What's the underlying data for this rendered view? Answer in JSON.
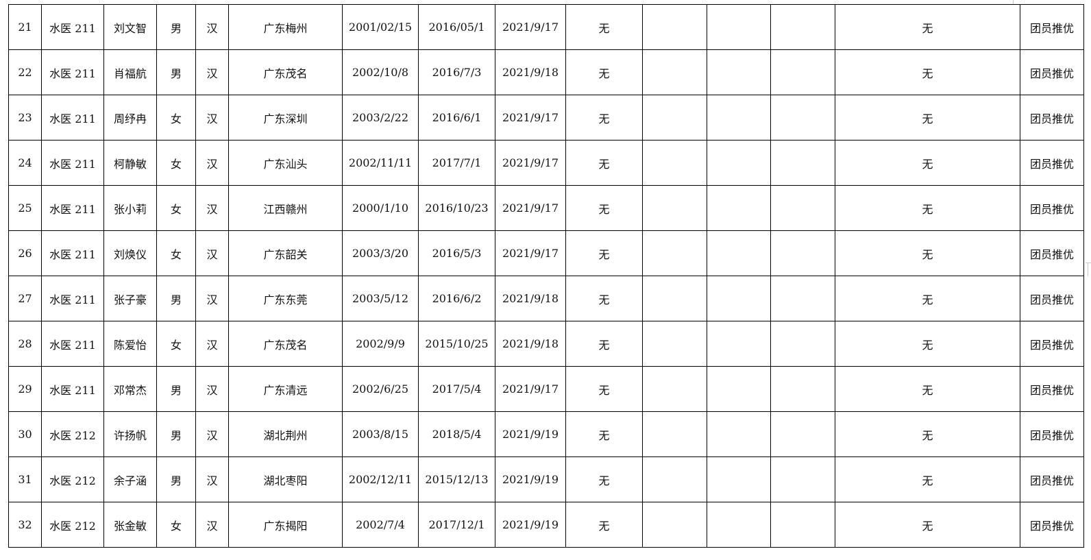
{
  "rows": [
    [
      "21",
      "水医 211",
      "刘文智",
      "男",
      "汉",
      "广东梅州",
      "2001/02/15",
      "2016/05/1",
      "2021/9/17",
      "无",
      "",
      "",
      "",
      "无",
      "团员推优"
    ],
    [
      "22",
      "水医 211",
      "肖福航",
      "男",
      "汉",
      "广东茂名",
      "2002/10/8",
      "2016/7/3",
      "2021/9/18",
      "无",
      "",
      "",
      "",
      "无",
      "团员推优"
    ],
    [
      "23",
      "水医 211",
      "周纾冉",
      "女",
      "汉",
      "广东深圳",
      "2003/2/22",
      "2016/6/1",
      "2021/9/17",
      "无",
      "",
      "",
      "",
      "无",
      "团员推优"
    ],
    [
      "24",
      "水医 211",
      "柯静敏",
      "女",
      "汉",
      "广东汕头",
      "2002/11/11",
      "2017/7/1",
      "2021/9/17",
      "无",
      "",
      "",
      "",
      "无",
      "团员推优"
    ],
    [
      "25",
      "水医 211",
      "张小莉",
      "女",
      "汉",
      "江西赣州",
      "2000/1/10",
      "2016/10/23",
      "2021/9/17",
      "无",
      "",
      "",
      "",
      "无",
      "团员推优"
    ],
    [
      "26",
      "水医 211",
      "刘焕仪",
      "女",
      "汉",
      "广东韶关",
      "2003/3/20",
      "2016/5/3",
      "2021/9/17",
      "无",
      "",
      "",
      "",
      "无",
      "团员推优"
    ],
    [
      "27",
      "水医 211",
      "张子豪",
      "男",
      "汉",
      "广东东莞",
      "2003/5/12",
      "2016/6/2",
      "2021/9/18",
      "无",
      "",
      "",
      "",
      "无",
      "团员推优"
    ],
    [
      "28",
      "水医 211",
      "陈爱怡",
      "女",
      "汉",
      "广东茂名",
      "2002/9/9",
      "2015/10/25",
      "2021/9/18",
      "无",
      "",
      "",
      "",
      "无",
      "团员推优"
    ],
    [
      "29",
      "水医 211",
      "邓常杰",
      "男",
      "汉",
      "广东清远",
      "2002/6/25",
      "2017/5/4",
      "2021/9/17",
      "无",
      "",
      "",
      "",
      "无",
      "团员推优"
    ],
    [
      "30",
      "水医 212",
      "许扬帆",
      "男",
      "汉",
      "湖北荆州",
      "2003/8/15",
      "2018/5/4",
      "2021/9/19",
      "无",
      "",
      "",
      "",
      "无",
      "团员推优"
    ],
    [
      "31",
      "水医 212",
      "余子涵",
      "男",
      "汉",
      "湖北枣阳",
      "2002/12/11",
      "2015/12/13",
      "2021/9/19",
      "无",
      "",
      "",
      "",
      "无",
      "团员推优"
    ],
    [
      "32",
      "水医 212",
      "张金敏",
      "女",
      "汉",
      "广东揭阳",
      "2002/7/4",
      "2017/12/1",
      "2021/9/19",
      "无",
      "",
      "",
      "",
      "无",
      "团员推优"
    ]
  ]
}
